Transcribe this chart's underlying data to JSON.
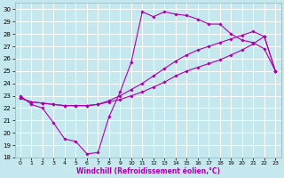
{
  "xlabel": "Windchill (Refroidissement éolien,°C)",
  "xlim": [
    -0.5,
    23.5
  ],
  "ylim": [
    18,
    30.5
  ],
  "yticks": [
    18,
    19,
    20,
    21,
    22,
    23,
    24,
    25,
    26,
    27,
    28,
    29,
    30
  ],
  "xticks": [
    0,
    1,
    2,
    3,
    4,
    5,
    6,
    7,
    8,
    9,
    10,
    11,
    12,
    13,
    14,
    15,
    16,
    17,
    18,
    19,
    20,
    21,
    22,
    23
  ],
  "bg_color": "#c5e8ee",
  "grid_color": "#ffffff",
  "line_color": "#aa00aa",
  "line1_y": [
    23.0,
    22.3,
    22.0,
    20.8,
    19.5,
    19.3,
    18.3,
    18.4,
    21.3,
    23.3,
    25.7,
    29.8,
    29.4,
    29.8,
    29.6,
    29.5,
    29.2,
    28.8,
    28.8,
    28.0,
    27.5,
    27.3,
    26.8,
    25.0
  ],
  "line2_y": [
    22.8,
    22.5,
    22.4,
    22.3,
    22.2,
    22.2,
    22.2,
    22.3,
    22.5,
    22.7,
    23.0,
    23.3,
    23.7,
    24.1,
    24.6,
    25.0,
    25.3,
    25.6,
    25.9,
    26.3,
    26.7,
    27.2,
    27.8,
    25.0
  ],
  "line3_y": [
    22.8,
    22.5,
    22.4,
    22.3,
    22.2,
    22.2,
    22.2,
    22.3,
    22.6,
    23.0,
    23.5,
    24.0,
    24.6,
    25.2,
    25.8,
    26.3,
    26.7,
    27.0,
    27.3,
    27.6,
    27.9,
    28.2,
    27.8,
    25.0
  ]
}
